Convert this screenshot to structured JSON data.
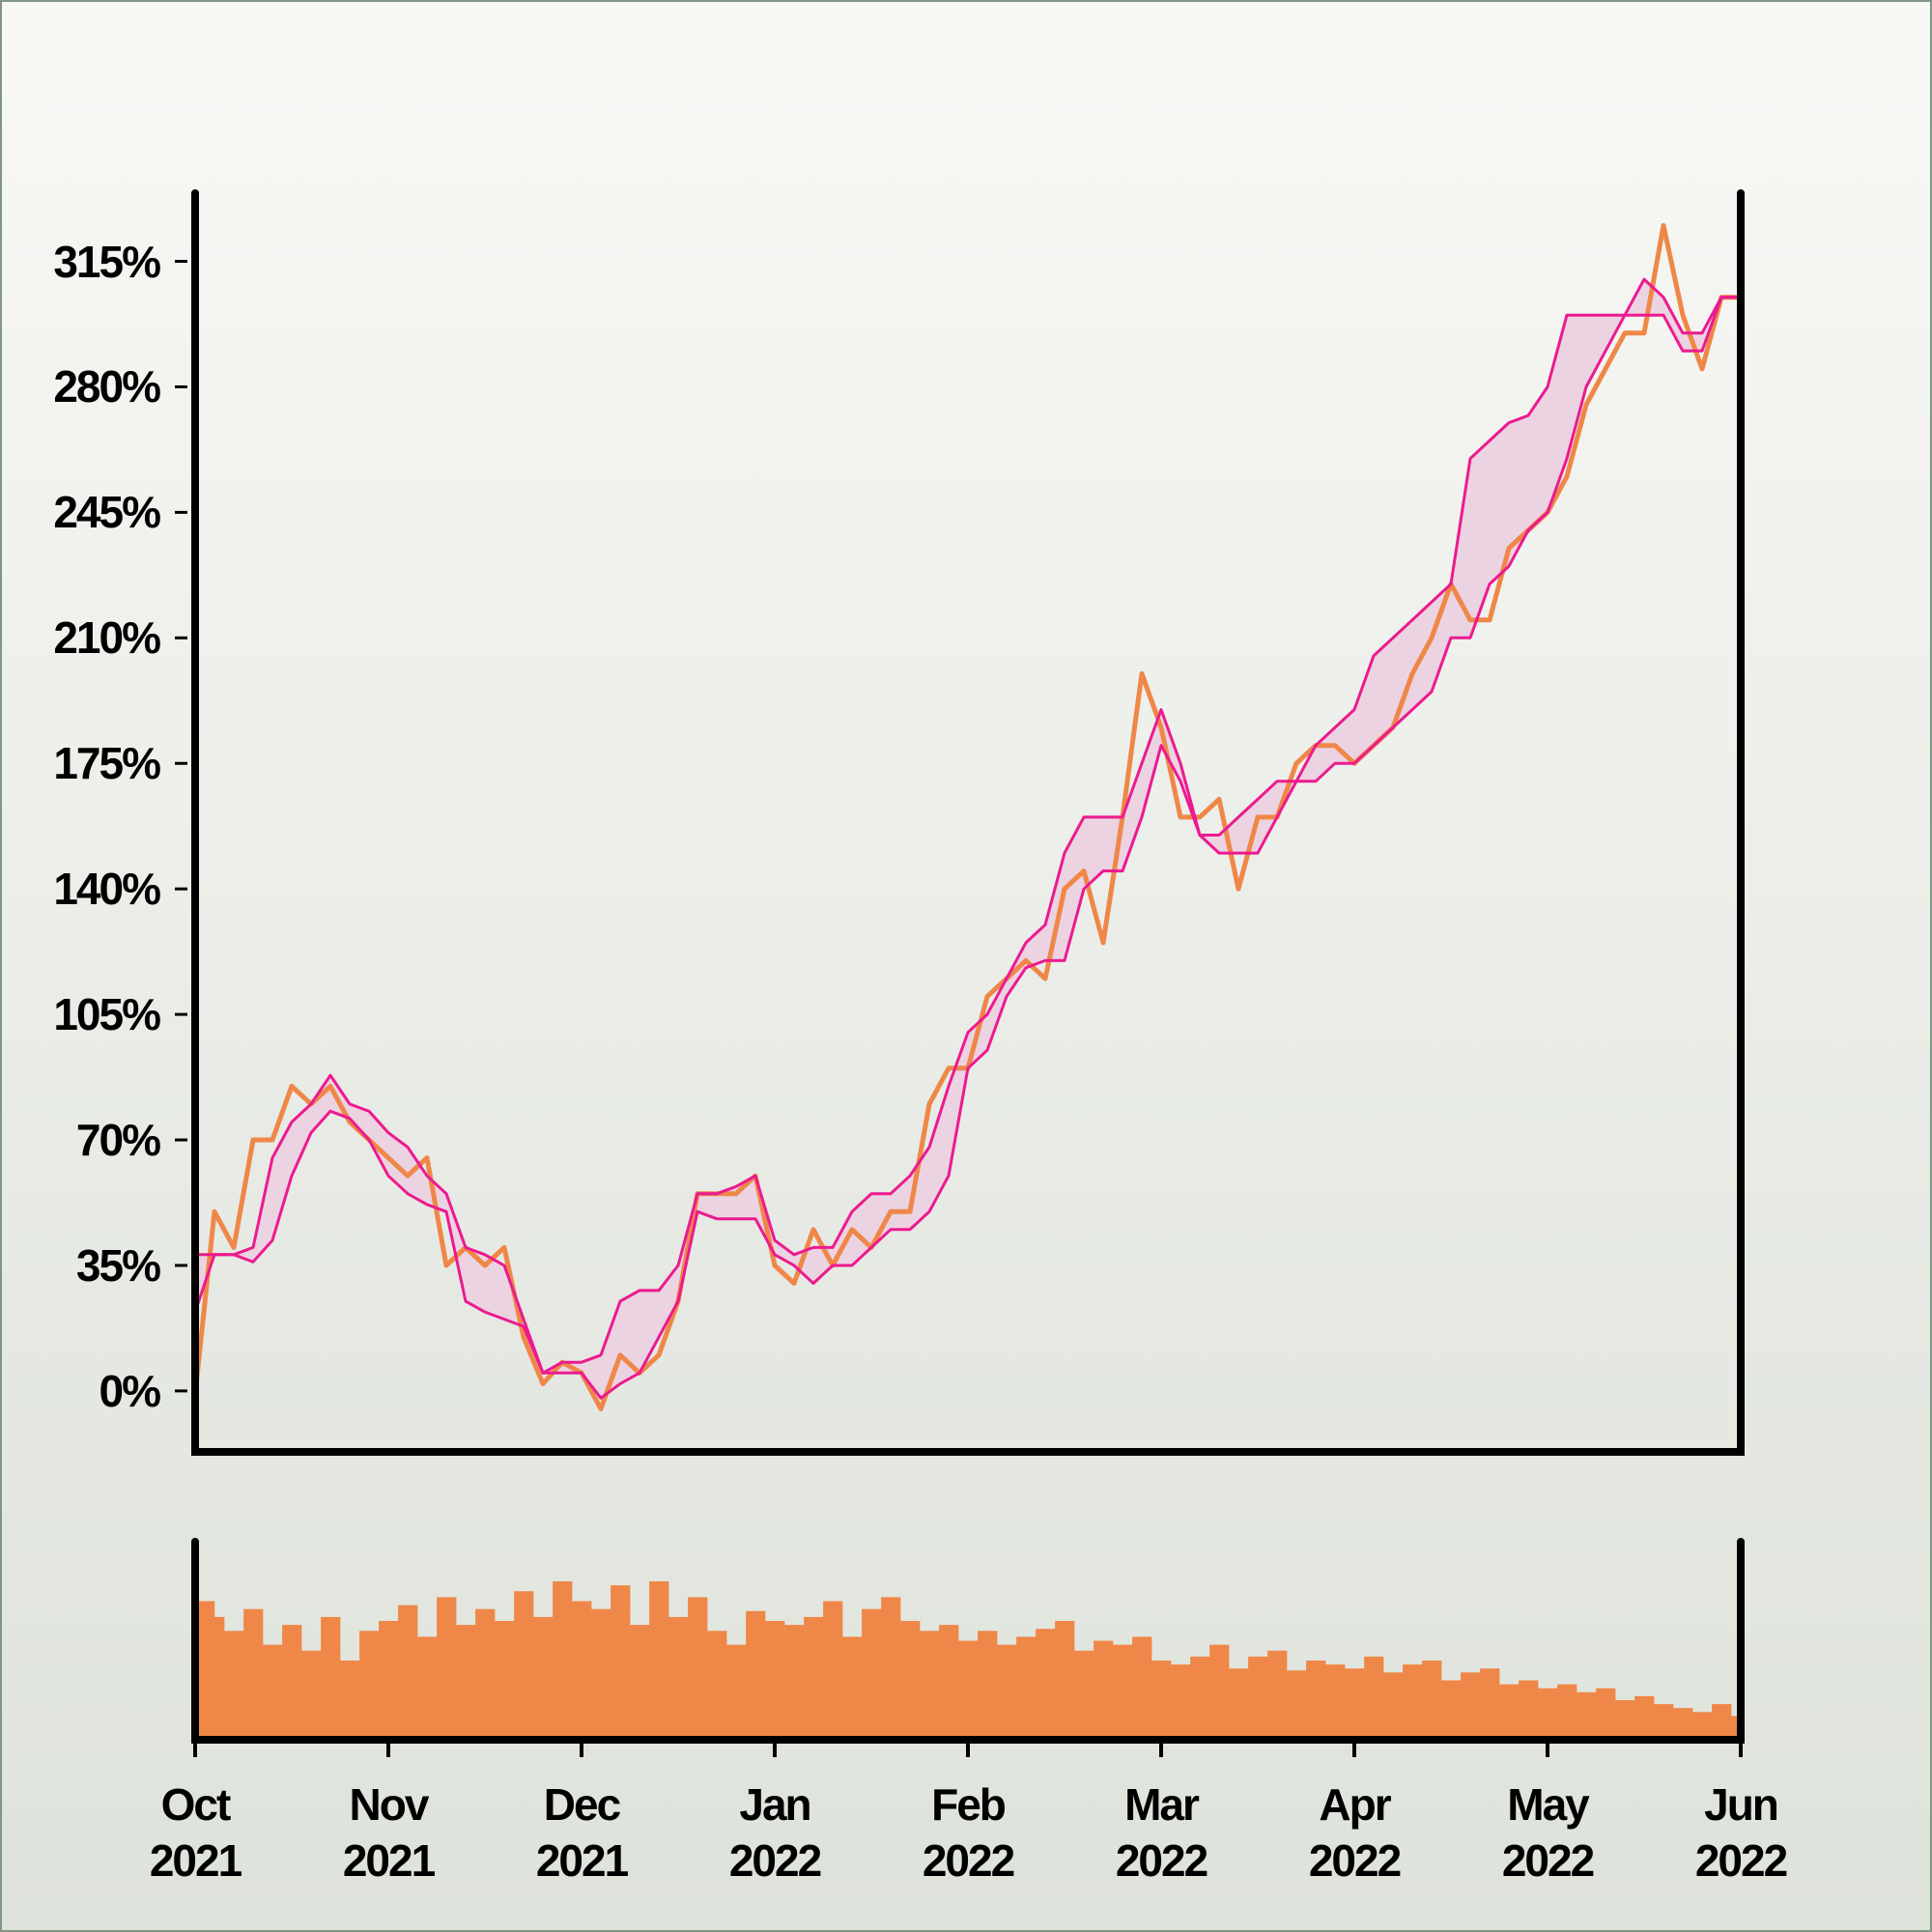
{
  "chart_data": [
    {
      "type": "line",
      "x": [
        0,
        0.1,
        0.2,
        0.3,
        0.4,
        0.5,
        0.6,
        0.7,
        0.8,
        0.9,
        1,
        1.1,
        1.2,
        1.3,
        1.4,
        1.5,
        1.6,
        1.7,
        1.8,
        1.9,
        2,
        2.1,
        2.2,
        2.3,
        2.4,
        2.5,
        2.6,
        2.7,
        2.8,
        2.9,
        3,
        3.1,
        3.2,
        3.3,
        3.4,
        3.5,
        3.6,
        3.7,
        3.8,
        3.9,
        4,
        4.1,
        4.2,
        4.3,
        4.4,
        4.5,
        4.6,
        4.7,
        4.8,
        4.9,
        5,
        5.1,
        5.2,
        5.3,
        5.4,
        5.5,
        5.6,
        5.7,
        5.8,
        5.9,
        6,
        6.1,
        6.2,
        6.3,
        6.4,
        6.5,
        6.6,
        6.7,
        6.8,
        6.9,
        7,
        7.1,
        7.2,
        7.3,
        7.4,
        7.5,
        7.6,
        7.7,
        7.8,
        7.9,
        8
      ],
      "series": [
        {
          "color": "#ef8748",
          "values": [
            -1,
            50,
            40,
            70,
            70,
            85,
            80,
            85,
            75,
            70,
            65,
            60,
            65,
            35,
            40,
            35,
            40,
            15,
            2,
            8,
            5,
            -5,
            10,
            5,
            10,
            25,
            55,
            55,
            55,
            60,
            35,
            30,
            45,
            35,
            45,
            40,
            50,
            50,
            80,
            90,
            90,
            110,
            115,
            120,
            115,
            140,
            145,
            125,
            160,
            200,
            185,
            160,
            160,
            165,
            140,
            160,
            160,
            175,
            180,
            180,
            175,
            180,
            185,
            200,
            210,
            225,
            215,
            215,
            235,
            240,
            245,
            255,
            275,
            285,
            295,
            295,
            325,
            300,
            285,
            305,
            305
          ]
        },
        {
          "color": "#ec1a8f",
          "values": [
            38,
            38,
            38,
            40,
            65,
            75,
            80,
            88,
            80,
            78,
            72,
            68,
            60,
            55,
            40,
            38,
            35,
            20,
            5,
            8,
            8,
            10,
            25,
            28,
            28,
            35,
            55,
            55,
            57,
            60,
            42,
            38,
            40,
            40,
            50,
            55,
            55,
            60,
            68,
            85,
            100,
            105,
            115,
            125,
            130,
            150,
            160,
            160,
            160,
            175,
            190,
            175,
            155,
            155,
            160,
            165,
            170,
            170,
            180,
            185,
            190,
            205,
            210,
            215,
            220,
            225,
            260,
            265,
            270,
            272,
            280,
            300,
            300,
            300,
            300,
            310,
            305,
            295,
            295,
            305,
            305
          ]
        },
        {
          "color": "#ec1a8f",
          "values": [
            22,
            38,
            38,
            36,
            42,
            60,
            72,
            78,
            76,
            70,
            60,
            55,
            52,
            50,
            25,
            22,
            20,
            18,
            5,
            5,
            5,
            -2,
            2,
            5,
            15,
            25,
            50,
            48,
            48,
            48,
            38,
            35,
            30,
            35,
            35,
            40,
            45,
            45,
            50,
            60,
            90,
            95,
            110,
            118,
            120,
            120,
            140,
            145,
            145,
            160,
            180,
            170,
            155,
            150,
            150,
            150,
            160,
            170,
            170,
            175,
            175,
            180,
            185,
            190,
            195,
            210,
            210,
            225,
            230,
            240,
            245,
            260,
            280,
            290,
            300,
            300,
            300,
            290,
            290,
            305,
            305
          ]
        }
      ],
      "band_color": "#ecd3e2",
      "xlim": [
        0,
        8
      ],
      "ylim": [
        -17,
        334
      ],
      "yticks": [
        {
          "value": 0,
          "label": "0%"
        },
        {
          "value": 35,
          "label": "35%"
        },
        {
          "value": 70,
          "label": "70%"
        },
        {
          "value": 105,
          "label": "105%"
        },
        {
          "value": 140,
          "label": "140%"
        },
        {
          "value": 175,
          "label": "175%"
        },
        {
          "value": 210,
          "label": "210%"
        },
        {
          "value": 245,
          "label": "245%"
        },
        {
          "value": 280,
          "label": "280%"
        },
        {
          "value": 315,
          "label": "315%"
        }
      ]
    },
    {
      "type": "bar",
      "x": [
        0,
        0.1,
        0.2,
        0.3,
        0.4,
        0.5,
        0.6,
        0.7,
        0.8,
        0.9,
        1,
        1.1,
        1.2,
        1.3,
        1.4,
        1.5,
        1.6,
        1.7,
        1.8,
        1.9,
        2,
        2.1,
        2.2,
        2.3,
        2.4,
        2.5,
        2.6,
        2.7,
        2.8,
        2.9,
        3,
        3.1,
        3.2,
        3.3,
        3.4,
        3.5,
        3.6,
        3.7,
        3.8,
        3.9,
        4,
        4.1,
        4.2,
        4.3,
        4.4,
        4.5,
        4.6,
        4.7,
        4.8,
        4.9,
        5,
        5.1,
        5.2,
        5.3,
        5.4,
        5.5,
        5.6,
        5.7,
        5.8,
        5.9,
        6,
        6.1,
        6.2,
        6.3,
        6.4,
        6.5,
        6.6,
        6.7,
        6.8,
        6.9,
        7,
        7.1,
        7.2,
        7.3,
        7.4,
        7.5,
        7.6,
        7.7,
        7.8,
        7.9,
        8
      ],
      "values": [
        70,
        62,
        55,
        66,
        48,
        58,
        45,
        62,
        40,
        55,
        60,
        68,
        52,
        72,
        58,
        66,
        60,
        75,
        62,
        80,
        70,
        66,
        78,
        58,
        80,
        62,
        72,
        55,
        48,
        65,
        60,
        58,
        62,
        70,
        52,
        66,
        72,
        60,
        55,
        58,
        50,
        55,
        48,
        52,
        56,
        60,
        45,
        50,
        48,
        52,
        40,
        38,
        42,
        48,
        36,
        42,
        45,
        35,
        40,
        38,
        36,
        42,
        34,
        38,
        40,
        30,
        34,
        36,
        28,
        30,
        26,
        28,
        24,
        26,
        20,
        22,
        18,
        16,
        14,
        18,
        12
      ],
      "color": "#ef8748",
      "xlim": [
        0,
        8
      ],
      "ylim": [
        0,
        100
      ],
      "xticks": [
        {
          "value": 0,
          "label": "Oct 2021"
        },
        {
          "value": 1,
          "label": "Nov 2021"
        },
        {
          "value": 2,
          "label": "Dec 2021"
        },
        {
          "value": 3,
          "label": "Jan 2022"
        },
        {
          "value": 4,
          "label": "Feb 2022"
        },
        {
          "value": 5,
          "label": "Mar 2022"
        },
        {
          "value": 6,
          "label": "Apr 2022"
        },
        {
          "value": 7,
          "label": "May 2022"
        },
        {
          "value": 8,
          "label": "Jun 2022"
        }
      ]
    }
  ]
}
